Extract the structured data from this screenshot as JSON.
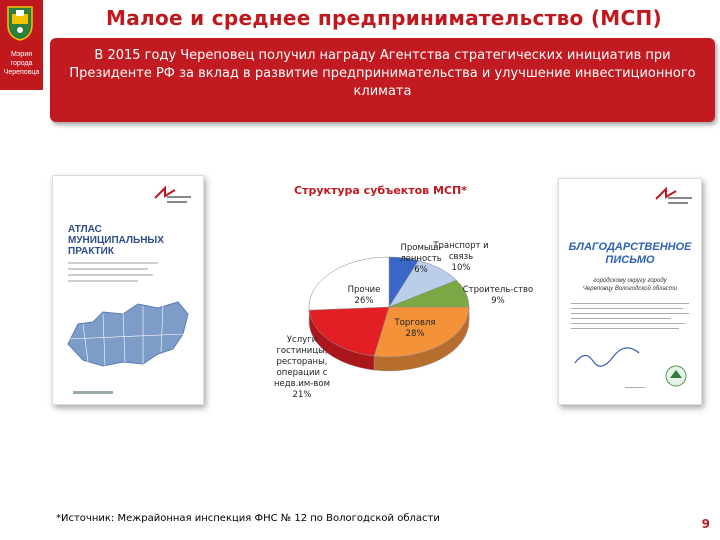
{
  "sidebar": {
    "org_lines": [
      "Мэрия",
      "города",
      "Череповца"
    ],
    "accent_color": "#c0181d"
  },
  "header": {
    "title": "Малое и среднее предпринимательство (МСП)"
  },
  "banner": {
    "text": "В 2015 году Череповец получил награду Агентства стратегических инициатив при Президенте РФ за вклад в развитие предпринимательства и улучшение инвестиционного климата"
  },
  "documents": {
    "left": {
      "title_lines": [
        "АТЛАС",
        "МУНИЦИПАЛЬНЫХ",
        "ПРАКТИК"
      ]
    },
    "right": {
      "title_lines": [
        "БЛАГОДАРСТВЕННОЕ",
        "ПИСЬМО"
      ],
      "subtitle_lines": [
        "городскому округу городу",
        "Череповцу Вологодской области"
      ]
    }
  },
  "chart_data": {
    "type": "pie",
    "title": "Структура субъектов МСП*",
    "categories": [
      "Промыш-ленность",
      "Транспорт и связь",
      "Строитель-ство",
      "Торговля",
      "Услуги гостиницы, рестораны, операции с недв.им-вом",
      "Прочие"
    ],
    "values": [
      6,
      10,
      9,
      28,
      21,
      26
    ],
    "labels": [
      {
        "lines": [
          "Промыш-ленность",
          "6%"
        ]
      },
      {
        "lines": [
          "Транспорт и",
          "связь",
          "10%"
        ]
      },
      {
        "lines": [
          "Строитель-ство",
          "9%"
        ]
      },
      {
        "lines": [
          "Торговля",
          "28%"
        ]
      },
      {
        "lines": [
          "Услуги",
          "гостиницы,",
          "рестораны,",
          "операции с",
          "недв.им-вом",
          "21%"
        ]
      },
      {
        "lines": [
          "Прочие",
          "26%"
        ]
      }
    ],
    "colors": [
      "#3a66c8",
      "#b9cfe9",
      "#7aa845",
      "#f4923a",
      "#e31e24",
      "#ffffff"
    ]
  },
  "footer": {
    "source": "*Источник: Межрайонная инспекция ФНС № 12 по Вологодской области",
    "page_number": "9"
  }
}
